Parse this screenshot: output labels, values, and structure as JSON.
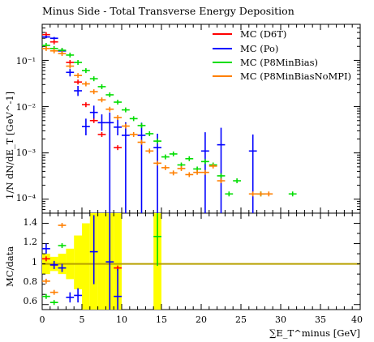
{
  "chart_data": {
    "type": "scatter",
    "title": "Minus Side - Total Transverse Energy Deposition",
    "xlabel": "∑E_T^minus [GeV]",
    "ylabel": "1/N dN/dE_T [GeV^-1]",
    "ratio_ylabel": "MC/data",
    "xlim": [
      0,
      40
    ],
    "ylim": [
      5e-05,
      0.6
    ],
    "ratio_ylim": [
      0.55,
      1.5
    ],
    "yscale": "log",
    "legend_position": "top-right",
    "x_ticks": [
      "0",
      "5",
      "10",
      "15",
      "20",
      "25",
      "30",
      "35",
      "40"
    ],
    "y_ticks": [
      "10⁻¹",
      "10⁻²",
      "10⁻³",
      "10⁻⁴"
    ],
    "ratio_ticks": [
      "0.6",
      "0.8",
      "1",
      "1.2",
      "1.4"
    ],
    "series": [
      {
        "name": "MC (D6T)",
        "color": "#ff0000",
        "points": [
          {
            "x": 0.5,
            "y": 0.36
          },
          {
            "x": 1.5,
            "y": 0.25
          },
          {
            "x": 2.5,
            "y": 0.16
          },
          {
            "x": 3.5,
            "y": 0.09
          },
          {
            "x": 4.5,
            "y": 0.034
          },
          {
            "x": 5.5,
            "y": 0.011
          },
          {
            "x": 6.5,
            "y": 0.005
          },
          {
            "x": 7.5,
            "y": 0.0025
          },
          {
            "x": 9.5,
            "y": 0.0013
          }
        ],
        "ratio": [
          {
            "x": 0.5,
            "y": 1.05
          },
          {
            "x": 1.5,
            "y": 0.99
          },
          {
            "x": 9.5,
            "y": 0.96
          }
        ]
      },
      {
        "name": "MC (Po)",
        "color": "#0000ff",
        "points": [
          {
            "x": 0.5,
            "y": 0.32,
            "ylo": 0.3,
            "yhi": 0.34
          },
          {
            "x": 1.5,
            "y": 0.3,
            "ylo": 0.28,
            "yhi": 0.32
          },
          {
            "x": 2.5,
            "y": 0.16,
            "ylo": 0.14,
            "yhi": 0.18
          },
          {
            "x": 3.5,
            "y": 0.055,
            "ylo": 0.045,
            "yhi": 0.065
          },
          {
            "x": 4.5,
            "y": 0.022,
            "ylo": 0.017,
            "yhi": 0.028
          },
          {
            "x": 5.5,
            "y": 0.0037,
            "ylo": 0.0024,
            "yhi": 0.0055
          },
          {
            "x": 6.5,
            "y": 0.0075,
            "ylo": 0.0055,
            "yhi": 0.0105
          },
          {
            "x": 7.5,
            "y": 0.0045,
            "ylo": 0.003,
            "yhi": 0.0068
          },
          {
            "x": 8.5,
            "y": 0.0045,
            "ylo": 5e-05,
            "yhi": 0.0075
          },
          {
            "x": 9.5,
            "y": 0.0036,
            "ylo": 0.0024,
            "yhi": 0.0055
          },
          {
            "x": 10.5,
            "y": 0.0024,
            "ylo": 5e-05,
            "yhi": 0.0046
          },
          {
            "x": 12.5,
            "y": 0.0024,
            "ylo": 5e-05,
            "yhi": 0.0045
          },
          {
            "x": 14.5,
            "y": 0.0013,
            "ylo": 5e-05,
            "yhi": 0.0026
          },
          {
            "x": 20.5,
            "y": 0.0011,
            "ylo": 5e-05,
            "yhi": 0.0028
          },
          {
            "x": 22.5,
            "y": 0.0015,
            "ylo": 5e-05,
            "yhi": 0.0035
          },
          {
            "x": 26.5,
            "y": 0.0011,
            "ylo": 5e-05,
            "yhi": 0.0025
          }
        ],
        "ratio": [
          {
            "x": 0.5,
            "y": 1.15,
            "ylo": 1.1,
            "yhi": 1.2
          },
          {
            "x": 1.5,
            "y": 0.99,
            "ylo": 0.95,
            "yhi": 1.03
          },
          {
            "x": 2.5,
            "y": 0.96,
            "ylo": 0.92,
            "yhi": 1.0
          },
          {
            "x": 3.5,
            "y": 0.67,
            "ylo": 0.62,
            "yhi": 0.72
          },
          {
            "x": 4.5,
            "y": 0.69,
            "ylo": 0.62,
            "yhi": 0.76
          },
          {
            "x": 6.5,
            "y": 1.12,
            "ylo": 0.8,
            "yhi": 1.48
          },
          {
            "x": 8.5,
            "y": 1.02,
            "ylo": 0.55,
            "yhi": 1.5
          },
          {
            "x": 9.5,
            "y": 0.68,
            "ylo": 0.55,
            "yhi": 0.95
          }
        ]
      },
      {
        "name": "MC (P8MinBias)",
        "color": "#00dd00",
        "points": [
          {
            "x": 0.5,
            "y": 0.21
          },
          {
            "x": 1.5,
            "y": 0.18
          },
          {
            "x": 2.5,
            "y": 0.165
          },
          {
            "x": 3.5,
            "y": 0.13
          },
          {
            "x": 4.5,
            "y": 0.09
          },
          {
            "x": 5.5,
            "y": 0.06
          },
          {
            "x": 6.5,
            "y": 0.04
          },
          {
            "x": 7.5,
            "y": 0.027
          },
          {
            "x": 8.5,
            "y": 0.018
          },
          {
            "x": 9.5,
            "y": 0.0125
          },
          {
            "x": 10.5,
            "y": 0.0085
          },
          {
            "x": 11.5,
            "y": 0.0055
          },
          {
            "x": 12.5,
            "y": 0.0039
          },
          {
            "x": 13.5,
            "y": 0.0026
          },
          {
            "x": 14.5,
            "y": 0.0018
          },
          {
            "x": 15.5,
            "y": 0.00082
          },
          {
            "x": 16.5,
            "y": 0.00095
          },
          {
            "x": 17.5,
            "y": 0.00055
          },
          {
            "x": 18.5,
            "y": 0.00075
          },
          {
            "x": 19.5,
            "y": 0.00045
          },
          {
            "x": 20.5,
            "y": 0.00065
          },
          {
            "x": 21.5,
            "y": 0.00055
          },
          {
            "x": 22.5,
            "y": 0.00032
          },
          {
            "x": 23.5,
            "y": 0.00013
          },
          {
            "x": 24.5,
            "y": 0.00025
          },
          {
            "x": 27.5,
            "y": 0.00013
          },
          {
            "x": 31.5,
            "y": 0.00013
          }
        ],
        "ratio": [
          {
            "x": 0.5,
            "y": 0.68
          },
          {
            "x": 1.5,
            "y": 0.62
          },
          {
            "x": 2.5,
            "y": 1.18
          },
          {
            "x": 14.5,
            "y": 1.27,
            "ylo": 0.98,
            "yhi": 1.5
          }
        ]
      },
      {
        "name": "MC (P8MinBiasNoMPI)",
        "color": "#ff7f00",
        "points": [
          {
            "x": 0.5,
            "y": 0.18
          },
          {
            "x": 1.5,
            "y": 0.16
          },
          {
            "x": 2.5,
            "y": 0.14
          },
          {
            "x": 3.5,
            "y": 0.075
          },
          {
            "x": 4.5,
            "y": 0.047
          },
          {
            "x": 5.5,
            "y": 0.031
          },
          {
            "x": 6.5,
            "y": 0.021
          },
          {
            "x": 7.5,
            "y": 0.014
          },
          {
            "x": 8.5,
            "y": 0.0088
          },
          {
            "x": 9.5,
            "y": 0.0058
          },
          {
            "x": 10.5,
            "y": 0.0038
          },
          {
            "x": 11.5,
            "y": 0.0025
          },
          {
            "x": 12.5,
            "y": 0.0017
          },
          {
            "x": 13.5,
            "y": 0.0011
          },
          {
            "x": 14.5,
            "y": 0.0006
          },
          {
            "x": 15.5,
            "y": 0.00048
          },
          {
            "x": 16.5,
            "y": 0.00037
          },
          {
            "x": 17.5,
            "y": 0.00046
          },
          {
            "x": 18.5,
            "y": 0.00034
          },
          {
            "x": 19.5,
            "y": 0.00038
          },
          {
            "x": 20.5,
            "y": 0.00038
          },
          {
            "x": 21.5,
            "y": 0.00052
          },
          {
            "x": 22.5,
            "y": 0.00025
          },
          {
            "x": 26.5,
            "y": 0.00013
          },
          {
            "x": 27.5,
            "y": 0.00013
          },
          {
            "x": 28.5,
            "y": 0.00013
          }
        ],
        "ratio": [
          {
            "x": 0.5,
            "y": 0.83
          },
          {
            "x": 1.5,
            "y": 0.72
          },
          {
            "x": 2.5,
            "y": 1.38
          }
        ]
      }
    ],
    "ratio_band": [
      {
        "x0": 0,
        "x1": 1,
        "lo": 0.9,
        "hi": 1.1
      },
      {
        "x0": 1,
        "x1": 2,
        "lo": 0.93,
        "hi": 1.07
      },
      {
        "x0": 2,
        "x1": 3,
        "lo": 0.9,
        "hi": 1.1
      },
      {
        "x0": 3,
        "x1": 4,
        "lo": 0.85,
        "hi": 1.15
      },
      {
        "x0": 4,
        "x1": 5,
        "lo": 0.75,
        "hi": 1.28
      },
      {
        "x0": 5,
        "x1": 6,
        "lo": 0.55,
        "hi": 1.4
      },
      {
        "x0": 6,
        "x1": 7,
        "lo": 0.55,
        "hi": 1.5
      },
      {
        "x0": 7,
        "x1": 8,
        "lo": 0.55,
        "hi": 1.5
      },
      {
        "x0": 8,
        "x1": 9,
        "lo": 0.55,
        "hi": 1.5
      },
      {
        "x0": 9,
        "x1": 10,
        "lo": 0.55,
        "hi": 1.5
      },
      {
        "x0": 14,
        "x1": 15,
        "lo": 0.55,
        "hi": 1.5
      }
    ]
  }
}
